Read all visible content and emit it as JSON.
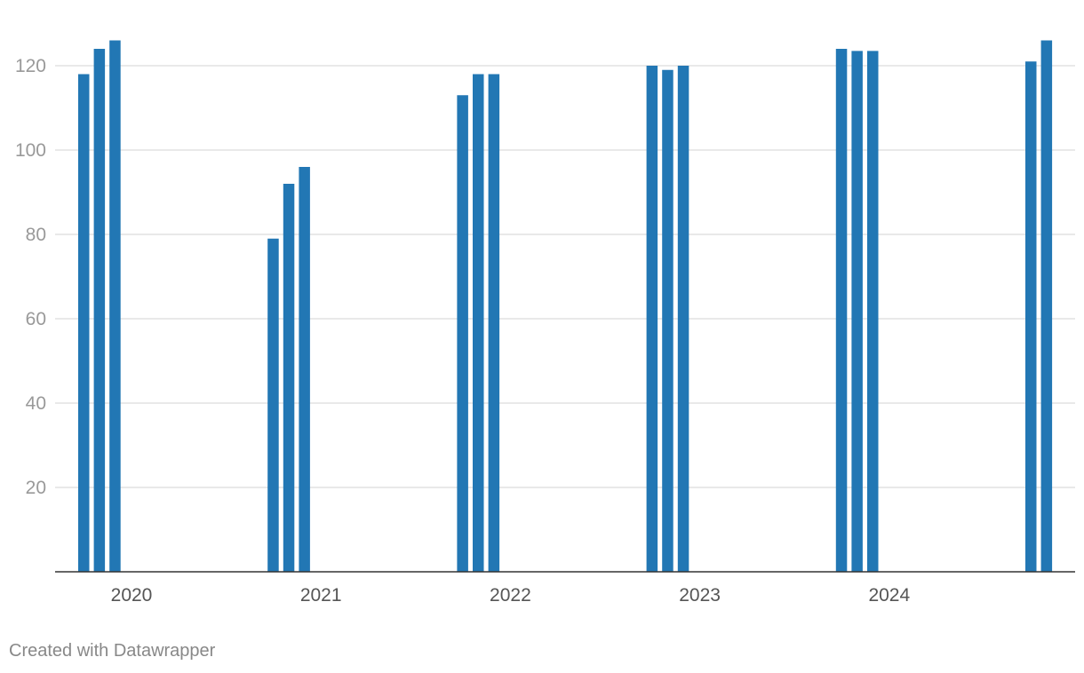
{
  "chart_data": {
    "type": "bar",
    "title": "",
    "xlabel": "",
    "ylabel": "",
    "ylim": [
      0,
      130
    ],
    "yticks": [
      20,
      40,
      60,
      80,
      100,
      120
    ],
    "grid": true,
    "legend": "none",
    "bar_color": "#2277b4",
    "groups": [
      {
        "label": "2020",
        "values": [
          118,
          124,
          126
        ]
      },
      {
        "label": "2021",
        "values": [
          79,
          92,
          96
        ]
      },
      {
        "label": "2022",
        "values": [
          113,
          118,
          118
        ]
      },
      {
        "label": "2023",
        "values": [
          120,
          119,
          120
        ]
      },
      {
        "label": "2024",
        "values": [
          124,
          123.5,
          123.5
        ]
      },
      {
        "label": "",
        "values": [
          121,
          126
        ]
      }
    ]
  },
  "footer": {
    "credit": "Created with Datawrapper"
  }
}
